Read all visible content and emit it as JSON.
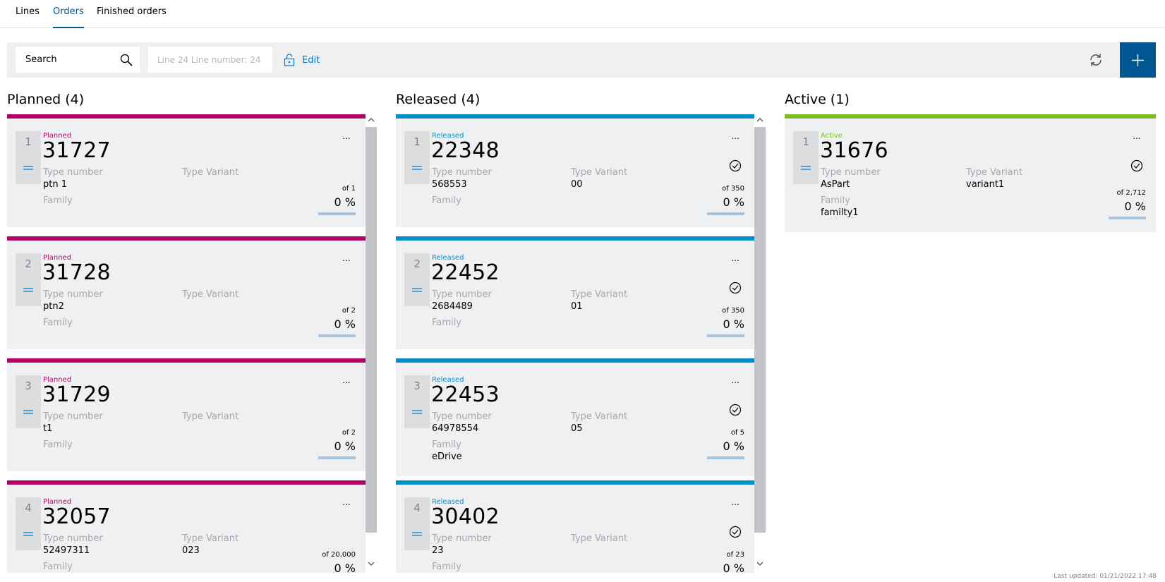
{
  "nav": {
    "tabs": [
      {
        "label": "Lines"
      },
      {
        "label": "Orders"
      },
      {
        "label": "Finished orders"
      }
    ]
  },
  "toolbar": {
    "search_placeholder": "Search",
    "line_value": "Line 24 Line number: 24",
    "edit_label": "Edit"
  },
  "colors": {
    "planned": "#b5006a",
    "released": "#008ecf",
    "active": "#78be20",
    "accent": "#005691"
  },
  "columns": {
    "planned": {
      "title": "Planned (4)",
      "cards": [
        {
          "pos": "1",
          "status": "Planned",
          "order": "31727",
          "type_number_label": "Type number",
          "type_number": "ptn 1",
          "type_variant_label": "Type Variant",
          "type_variant": "",
          "family_label": "Family",
          "family": "",
          "more": "...",
          "of": "of 1",
          "pct": "0 %",
          "progress": 0
        },
        {
          "pos": "2",
          "status": "Planned",
          "order": "31728",
          "type_number_label": "Type number",
          "type_number": "ptn2",
          "type_variant_label": "Type Variant",
          "type_variant": "",
          "family_label": "Family",
          "family": "",
          "more": "...",
          "of": "of 2",
          "pct": "0 %",
          "progress": 0
        },
        {
          "pos": "3",
          "status": "Planned",
          "order": "31729",
          "type_number_label": "Type number",
          "type_number": "t1",
          "type_variant_label": "Type Variant",
          "type_variant": "",
          "family_label": "Family",
          "family": "",
          "more": "...",
          "of": "of 2",
          "pct": "0 %",
          "progress": 0
        },
        {
          "pos": "4",
          "status": "Planned",
          "order": "32057",
          "type_number_label": "Type number",
          "type_number": "52497311",
          "type_variant_label": "Type Variant",
          "type_variant": "023",
          "family_label": "Family",
          "family": "",
          "more": "...",
          "of": "of 20,000",
          "pct": "0 %",
          "progress": 0
        }
      ]
    },
    "released": {
      "title": "Released (4)",
      "cards": [
        {
          "pos": "1",
          "status": "Released",
          "order": "22348",
          "type_number_label": "Type number",
          "type_number": "568553",
          "type_variant_label": "Type Variant",
          "type_variant": "00",
          "family_label": "Family",
          "family": "",
          "more": "...",
          "of": "of 350",
          "pct": "0 %",
          "progress": 0
        },
        {
          "pos": "2",
          "status": "Released",
          "order": "22452",
          "type_number_label": "Type number",
          "type_number": "2684489",
          "type_variant_label": "Type Variant",
          "type_variant": "01",
          "family_label": "Family",
          "family": "",
          "more": "...",
          "of": "of 350",
          "pct": "0 %",
          "progress": 0
        },
        {
          "pos": "3",
          "status": "Released",
          "order": "22453",
          "type_number_label": "Type number",
          "type_number": "64978554",
          "type_variant_label": "Type Variant",
          "type_variant": "05",
          "family_label": "Family",
          "family": "eDrive",
          "more": "...",
          "of": "of 5",
          "pct": "0 %",
          "progress": 0
        },
        {
          "pos": "4",
          "status": "Released",
          "order": "30402",
          "type_number_label": "Type number",
          "type_number": "23",
          "type_variant_label": "Type Variant",
          "type_variant": "",
          "family_label": "Family",
          "family": "",
          "more": "...",
          "of": "of 23",
          "pct": "0 %",
          "progress": 0
        }
      ]
    },
    "active": {
      "title": "Active (1)",
      "cards": [
        {
          "pos": "1",
          "status": "Active",
          "order": "31676",
          "type_number_label": "Type number",
          "type_number": "AsPart",
          "type_variant_label": "Type Variant",
          "type_variant": "variant1",
          "family_label": "Family",
          "family": "familty1",
          "more": "...",
          "of": "of 2,712",
          "pct": "0 %",
          "progress": 0
        }
      ]
    }
  },
  "footer": {
    "last_updated": "Last updated: 01/21/2022 17:48"
  }
}
